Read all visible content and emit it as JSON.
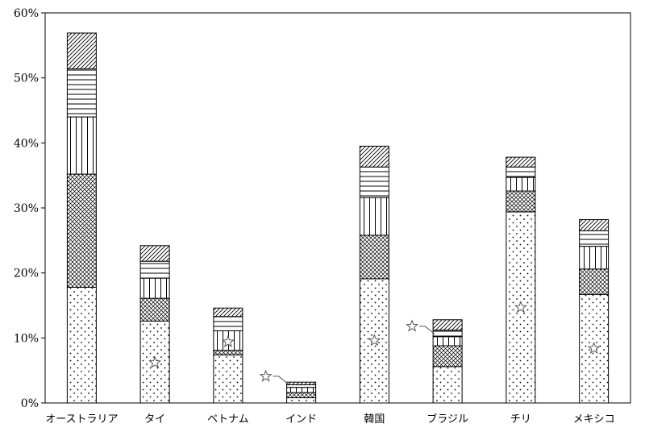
{
  "chart_data": {
    "type": "bar",
    "stacked": true,
    "categories": [
      "オーストラリア",
      "タイ",
      "ベトナム",
      "インド",
      "韓国",
      "ブラジル",
      "チリ",
      "メキシコ"
    ],
    "series": [
      {
        "pattern": "dots",
        "values": [
          17.8,
          12.6,
          7.4,
          0.8,
          19.1,
          5.6,
          29.4,
          16.7
        ]
      },
      {
        "pattern": "crosshatch",
        "values": [
          17.4,
          3.5,
          0.7,
          0.8,
          6.7,
          3.2,
          3.2,
          3.9
        ]
      },
      {
        "pattern": "vertical",
        "values": [
          8.8,
          3.1,
          3.0,
          0.8,
          5.8,
          1.4,
          2.1,
          3.5
        ]
      },
      {
        "pattern": "horizontal",
        "values": [
          7.4,
          2.6,
          2.2,
          0.4,
          4.7,
          1.0,
          1.6,
          2.4
        ]
      },
      {
        "pattern": "diagonal",
        "values": [
          5.5,
          2.4,
          1.3,
          0.4,
          3.2,
          1.6,
          1.5,
          1.7
        ]
      }
    ],
    "star_markers": [
      {
        "category": "タイ",
        "y": 6.2
      },
      {
        "category": "ベトナム",
        "y": 9.4
      },
      {
        "category": "インド",
        "y": 4.1,
        "outside": true
      },
      {
        "category": "韓国",
        "y": 9.6
      },
      {
        "category": "ブラジル",
        "y": 11.8,
        "outside": true
      },
      {
        "category": "チリ",
        "y": 14.7
      },
      {
        "category": "メキシコ",
        "y": 8.4
      }
    ],
    "y_ticks": [
      "0%",
      "10%",
      "20%",
      "30%",
      "40%",
      "50%",
      "60%"
    ],
    "ylim": [
      0,
      60
    ],
    "grid": false,
    "legend": "none"
  }
}
